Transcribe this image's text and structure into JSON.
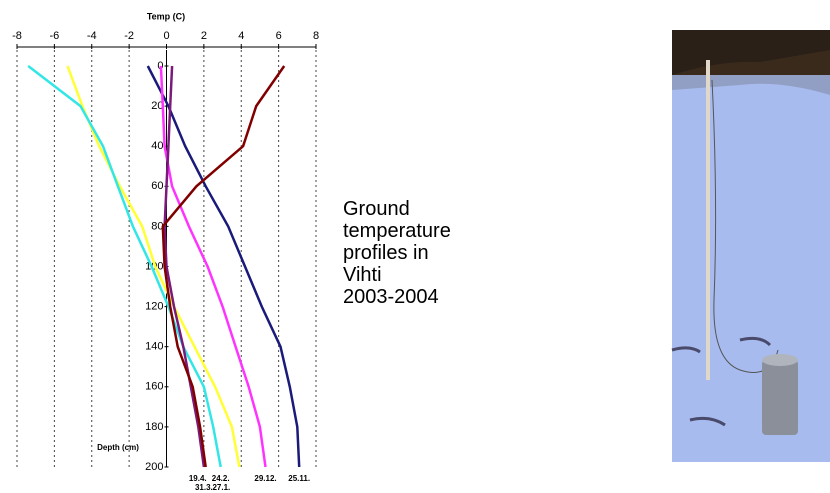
{
  "chart_data": {
    "type": "line",
    "title": "Temp (C)",
    "y_label": "Depth (cm)",
    "annotation": [
      "Ground",
      "temperature",
      "profiles in",
      "Vihti",
      "2003-2004"
    ],
    "y": [
      0,
      20,
      40,
      60,
      80,
      100,
      120,
      140,
      160,
      180,
      200
    ],
    "xlim": [
      -8,
      8
    ],
    "xticks": [
      -8,
      -6,
      -4,
      -2,
      0,
      2,
      4,
      6,
      8
    ],
    "ylim": [
      0,
      200
    ],
    "yticks": [
      0,
      20,
      40,
      60,
      80,
      100,
      120,
      140,
      160,
      180,
      200
    ],
    "grid": true,
    "series": [
      {
        "name": "25.11.",
        "color": "#1a1a7a",
        "values": [
          -1.0,
          0.1,
          1.0,
          2.1,
          3.3,
          4.2,
          5.1,
          6.1,
          6.6,
          7.0,
          7.1
        ]
      },
      {
        "name": "29.12.",
        "color": "#ff33ff",
        "values": [
          -0.3,
          -0.2,
          -0.1,
          0.3,
          1.2,
          2.2,
          3.0,
          3.7,
          4.4,
          5.0,
          5.3
        ]
      },
      {
        "name": "27.1.",
        "color": "#ffff33",
        "values": [
          -5.3,
          -4.5,
          -3.6,
          -2.5,
          -1.3,
          -0.6,
          0.4,
          1.5,
          2.6,
          3.5,
          3.9
        ]
      },
      {
        "name": "24.2.",
        "color": "#33e6e6",
        "values": [
          -7.4,
          -4.6,
          -3.4,
          -2.6,
          -1.8,
          -0.8,
          0.1,
          0.9,
          2.0,
          2.5,
          2.9
        ]
      },
      {
        "name": "31.3.",
        "color": "#7a1a7a",
        "values": [
          0.3,
          0.2,
          0.1,
          0.0,
          -0.1,
          0.0,
          0.4,
          0.9,
          1.3,
          1.7,
          2.0
        ]
      },
      {
        "name": "19.4.",
        "color": "#800000",
        "values": [
          6.3,
          4.8,
          4.1,
          1.6,
          -0.2,
          -0.1,
          0.2,
          0.6,
          1.4,
          1.8,
          2.1
        ]
      }
    ]
  }
}
